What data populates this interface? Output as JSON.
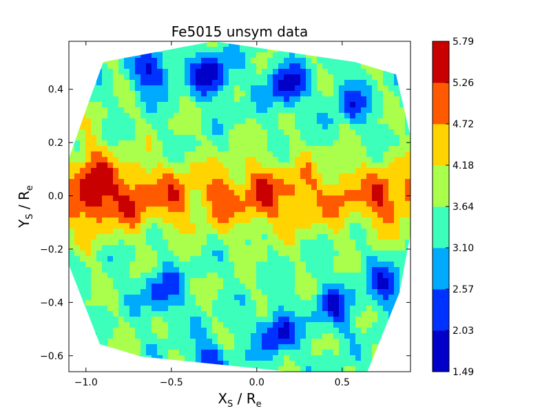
{
  "chart_data": {
    "type": "heatmap",
    "subtype": "filled-contour",
    "title": "Fe5015 unsym data",
    "xlabel": {
      "main": "X",
      "sub": "S",
      "sep": " / R",
      "unit_sub": "e"
    },
    "ylabel": {
      "main": "Y",
      "sub": "S",
      "sep": " / R",
      "unit_sub": "e"
    },
    "xlim": [
      -1.1,
      0.9
    ],
    "ylim": [
      -0.66,
      0.58
    ],
    "x_ticks": [
      -1.0,
      -0.5,
      0.0,
      0.5
    ],
    "x_tick_labels": [
      "−1.0",
      "−0.5",
      "0.0",
      "0.5"
    ],
    "y_ticks": [
      -0.6,
      -0.4,
      -0.2,
      0.0,
      0.2,
      0.4
    ],
    "y_tick_labels": [
      "−0.6",
      "−0.4",
      "−0.2",
      "0.0",
      "0.2",
      "0.4"
    ],
    "colorbar": {
      "levels": [
        1.49,
        2.03,
        2.57,
        3.1,
        3.64,
        4.18,
        4.72,
        5.26,
        5.79
      ],
      "level_labels": [
        "1.49",
        "2.03",
        "2.57",
        "3.10",
        "3.64",
        "4.18",
        "4.72",
        "5.26",
        "5.79"
      ],
      "colors": [
        "#0000c8",
        "#0032ff",
        "#00aaff",
        "#3cffbc",
        "#aaff4d",
        "#ffd400",
        "#ff5a00",
        "#c80000"
      ]
    },
    "grid": false,
    "field_description": "high values (orange/red) concentrated in a horizontal band near Y=0 across the full X range; low values (blue) in patches near Y=0.4 and Y=-0.4; cyan/green elsewhere",
    "field_features": {
      "band": {
        "y_center": 0.0,
        "y_halfwidth": 0.09,
        "peak_value": 5.2
      },
      "left_blob": {
        "x": -0.97,
        "y": 0.05,
        "value": 5.4
      },
      "low_patches": [
        {
          "x": -0.27,
          "y": 0.46,
          "value": 1.6
        },
        {
          "x": 0.17,
          "y": 0.42,
          "value": 1.8
        },
        {
          "x": -0.62,
          "y": 0.47,
          "value": 2.0
        },
        {
          "x": -0.55,
          "y": -0.36,
          "value": 2.2
        },
        {
          "x": 0.12,
          "y": -0.52,
          "value": 1.9
        },
        {
          "x": 0.45,
          "y": -0.42,
          "value": 2.2
        },
        {
          "x": 0.75,
          "y": -0.33,
          "value": 2.2
        },
        {
          "x": -0.28,
          "y": -0.62,
          "value": 2.3
        },
        {
          "x": 0.55,
          "y": 0.35,
          "value": 2.4
        }
      ]
    }
  }
}
